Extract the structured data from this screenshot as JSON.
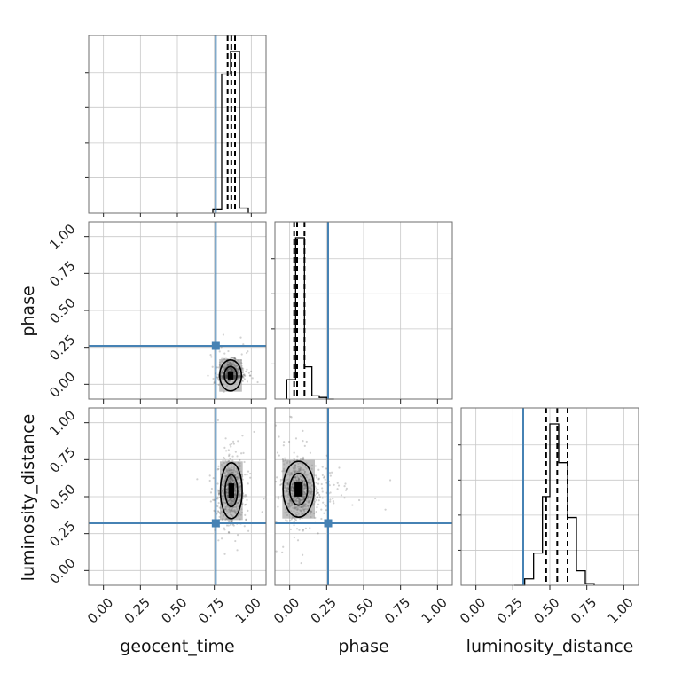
{
  "chart_data": {
    "type": "corner",
    "parameters": [
      "geocent_time",
      "phase",
      "luminosity_distance"
    ],
    "axis_labels": {
      "x": [
        "geocent_time",
        "phase",
        "luminosity_distance"
      ],
      "y": [
        "",
        "phase",
        "luminosity_distance"
      ]
    },
    "axis_range": [
      -0.1,
      1.1
    ],
    "ticks": [
      0.0,
      0.25,
      0.5,
      0.75,
      1.0
    ],
    "tick_labels": [
      "0.00",
      "0.25",
      "0.50",
      "0.75",
      "1.00"
    ],
    "grid": true,
    "truths": {
      "geocent_time": 0.76,
      "phase": 0.26,
      "luminosity_distance": 0.32
    },
    "truth_color": "#4682b4",
    "histograms": {
      "geocent_time": {
        "bin_edges": [
          0.74,
          0.8,
          0.86,
          0.92,
          0.98
        ],
        "counts": [
          0.02,
          0.86,
          1.0,
          0.03
        ],
        "quantiles": [
          0.84,
          0.865,
          0.89
        ]
      },
      "phase": {
        "bin_edges": [
          -0.02,
          0.04,
          0.1,
          0.15,
          0.2,
          0.25,
          0.3
        ],
        "counts": [
          0.12,
          1.0,
          0.2,
          0.02,
          0.01,
          0.0
        ],
        "quantiles": [
          0.03,
          0.05,
          0.1
        ]
      },
      "luminosity_distance": {
        "bin_edges": [
          0.26,
          0.33,
          0.39,
          0.45,
          0.5,
          0.56,
          0.62,
          0.68,
          0.74,
          0.8
        ],
        "counts": [
          0.0,
          0.04,
          0.2,
          0.55,
          1.0,
          0.76,
          0.42,
          0.09,
          0.01
        ],
        "quantiles": [
          0.475,
          0.55,
          0.62
        ]
      }
    },
    "density_2d": {
      "phase_vs_geocent_time": {
        "center": [
          0.86,
          0.06
        ],
        "spread": [
          0.035,
          0.05
        ]
      },
      "luminosity_distance_vs_geocent_time": {
        "center": [
          0.865,
          0.54
        ],
        "spread": [
          0.035,
          0.09
        ]
      },
      "luminosity_distance_vs_phase": {
        "center": [
          0.06,
          0.55
        ],
        "spread": [
          0.05,
          0.09
        ]
      }
    },
    "colors": {
      "truth": "#4682b4",
      "histogram": "#000000",
      "frame": "#6e6e6e",
      "grid": "#c8c8c8"
    }
  }
}
